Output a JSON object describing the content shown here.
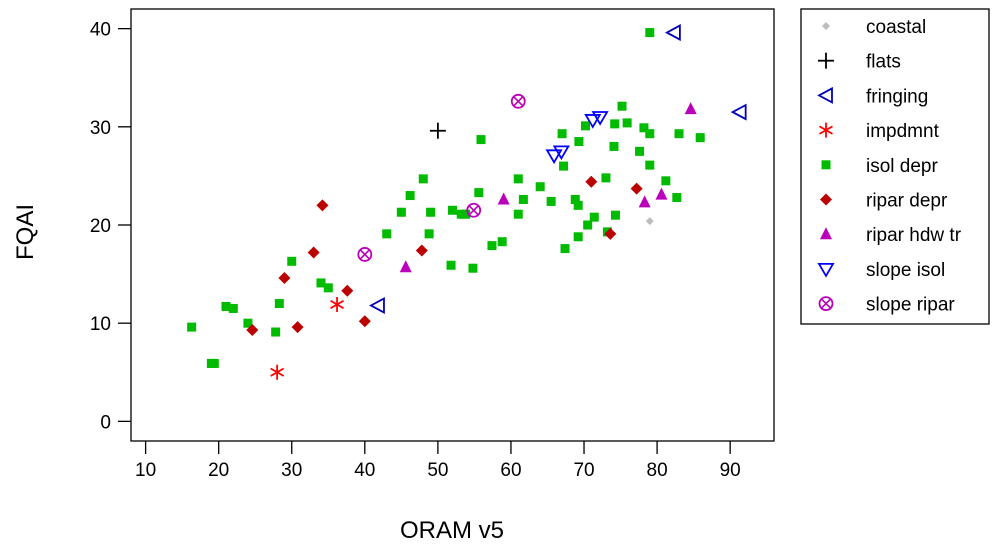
{
  "chart_data": {
    "type": "scatter",
    "title": "",
    "xlabel": "ORAM v5",
    "ylabel": "FQAI",
    "xlim": [
      8,
      96
    ],
    "ylim": [
      -2,
      42
    ],
    "xticks": [
      10,
      20,
      30,
      40,
      50,
      60,
      70,
      80,
      90
    ],
    "yticks": [
      0,
      10,
      20,
      30,
      40
    ],
    "grid": false,
    "legend_position": "right",
    "series": [
      {
        "name": "coastal",
        "marker": "diamond-small",
        "color": "#bdbdbd",
        "points": [
          [
            79,
            20.4
          ]
        ]
      },
      {
        "name": "flats",
        "marker": "plus",
        "color": "#000000",
        "points": [
          [
            50,
            29.6
          ]
        ]
      },
      {
        "name": "fringing",
        "marker": "triangle-left",
        "color": "#0000bb",
        "points": [
          [
            82.3,
            39.6
          ],
          [
            91.3,
            31.5
          ],
          [
            41.8,
            11.8
          ]
        ]
      },
      {
        "name": "impdmnt",
        "marker": "asterisk",
        "color": "#ff0000",
        "points": [
          [
            28,
            5
          ],
          [
            36.2,
            11.9
          ]
        ]
      },
      {
        "name": "isol depr",
        "marker": "square",
        "color": "#00bb00",
        "points": [
          [
            16.3,
            9.6
          ],
          [
            19,
            5.9
          ],
          [
            19.4,
            5.9
          ],
          [
            21,
            11.7
          ],
          [
            22,
            11.5
          ],
          [
            24,
            10
          ],
          [
            27.8,
            9.1
          ],
          [
            28.3,
            12
          ],
          [
            30,
            16.3
          ],
          [
            34,
            14.1
          ],
          [
            35,
            13.6
          ],
          [
            43,
            19.1
          ],
          [
            45,
            21.3
          ],
          [
            46.2,
            23
          ],
          [
            48,
            24.7
          ],
          [
            48.8,
            19.1
          ],
          [
            49,
            21.3
          ],
          [
            51.8,
            15.9
          ],
          [
            52,
            21.5
          ],
          [
            53.2,
            21.1
          ],
          [
            53.8,
            21.1
          ],
          [
            54.8,
            15.6
          ],
          [
            55.6,
            23.3
          ],
          [
            55.9,
            28.7
          ],
          [
            57.4,
            17.9
          ],
          [
            58.8,
            18.3
          ],
          [
            61,
            24.7
          ],
          [
            61,
            21.1
          ],
          [
            61.7,
            22.6
          ],
          [
            64,
            23.9
          ],
          [
            65.5,
            22.4
          ],
          [
            67,
            29.3
          ],
          [
            67.2,
            26
          ],
          [
            67.4,
            17.6
          ],
          [
            68.8,
            22.6
          ],
          [
            69.2,
            22
          ],
          [
            69.3,
            28.5
          ],
          [
            69.2,
            18.8
          ],
          [
            70.2,
            30.1
          ],
          [
            70.5,
            20
          ],
          [
            71.4,
            20.8
          ],
          [
            73,
            24.8
          ],
          [
            73.2,
            19.3
          ],
          [
            74.1,
            28
          ],
          [
            74.2,
            30.3
          ],
          [
            74.3,
            21
          ],
          [
            75.2,
            32.1
          ],
          [
            75.9,
            30.4
          ],
          [
            77.6,
            27.5
          ],
          [
            78.2,
            29.9
          ],
          [
            79,
            29.3
          ],
          [
            79,
            26.1
          ],
          [
            79,
            39.6
          ],
          [
            81.2,
            24.5
          ],
          [
            82.7,
            22.8
          ],
          [
            83,
            29.3
          ],
          [
            85.9,
            28.9
          ]
        ]
      },
      {
        "name": "ripar depr",
        "marker": "diamond",
        "color": "#bb0000",
        "points": [
          [
            24.6,
            9.3
          ],
          [
            29,
            14.6
          ],
          [
            30.8,
            9.6
          ],
          [
            33,
            17.2
          ],
          [
            34.2,
            22
          ],
          [
            37.6,
            13.3
          ],
          [
            40,
            10.2
          ],
          [
            47.8,
            17.4
          ],
          [
            71,
            24.4
          ],
          [
            73.6,
            19.1
          ],
          [
            77.2,
            23.7
          ]
        ]
      },
      {
        "name": "ripar hdw tr",
        "marker": "triangle-up",
        "color": "#bb00bb",
        "points": [
          [
            45.6,
            15.7
          ],
          [
            59,
            22.6
          ],
          [
            78.3,
            22.3
          ],
          [
            80.6,
            23.1
          ],
          [
            84.6,
            31.8
          ]
        ]
      },
      {
        "name": "slope isol",
        "marker": "triangle-down",
        "color": "#0000ff",
        "points": [
          [
            65.9,
            27.1
          ],
          [
            66.9,
            27.5
          ],
          [
            71.2,
            30.7
          ],
          [
            72.2,
            31
          ]
        ]
      },
      {
        "name": "slope ripar",
        "marker": "circle-x",
        "color": "#bb00bb",
        "points": [
          [
            40,
            17
          ],
          [
            54.9,
            21.5
          ],
          [
            61,
            32.6
          ]
        ]
      }
    ]
  }
}
